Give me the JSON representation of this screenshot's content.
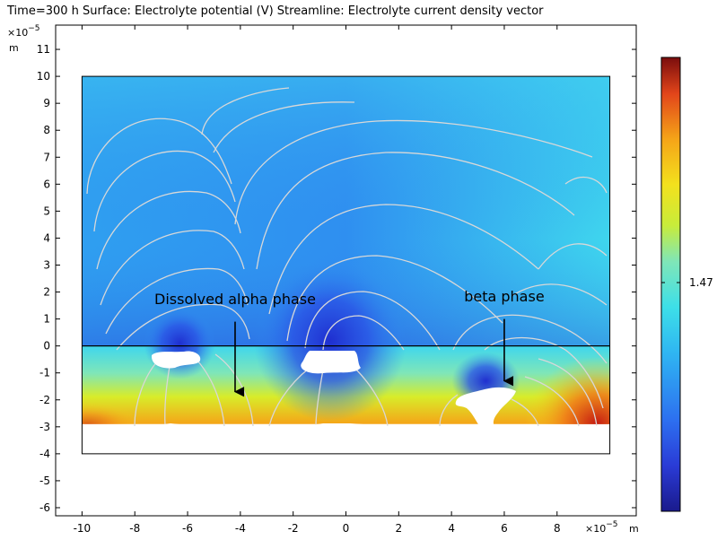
{
  "chart_data": {
    "type": "heatmap",
    "title": "Time=300 h  Surface: Electrolyte potential (V)  Streamline: Electrolyte current density vector",
    "x_unit_label": "m",
    "y_unit_label": "m",
    "x_multiplier": "×10",
    "y_multiplier": "×10",
    "multiplier_exponent": "−5",
    "x_ticks": [
      -10,
      -8,
      -6,
      -4,
      -2,
      0,
      2,
      4,
      6,
      8
    ],
    "y_ticks": [
      -6,
      -5,
      -4,
      -3,
      -2,
      -1,
      0,
      1,
      2,
      3,
      4,
      5,
      6,
      7,
      8,
      9,
      10,
      11
    ],
    "xlim": [
      -11,
      11
    ],
    "ylim": [
      -6.3,
      11.9
    ],
    "domain": {
      "x": [
        -10,
        10
      ],
      "y": [
        -4,
        10
      ]
    },
    "interface_y": 0,
    "colorbar": {
      "tick_value": 1.47,
      "tick_label": "1.47"
    },
    "annotations": [
      {
        "text": "Dissolved alpha phase",
        "x": -4.2,
        "y": 1.55,
        "arrow_from": [
          -4.2,
          0.9
        ],
        "arrow_to": [
          -4.2,
          -1.7
        ]
      },
      {
        "text": "beta phase",
        "x": 6.0,
        "y": 1.65,
        "arrow_from": [
          6.0,
          1.0
        ],
        "arrow_to": [
          6.0,
          -1.3
        ]
      }
    ]
  }
}
